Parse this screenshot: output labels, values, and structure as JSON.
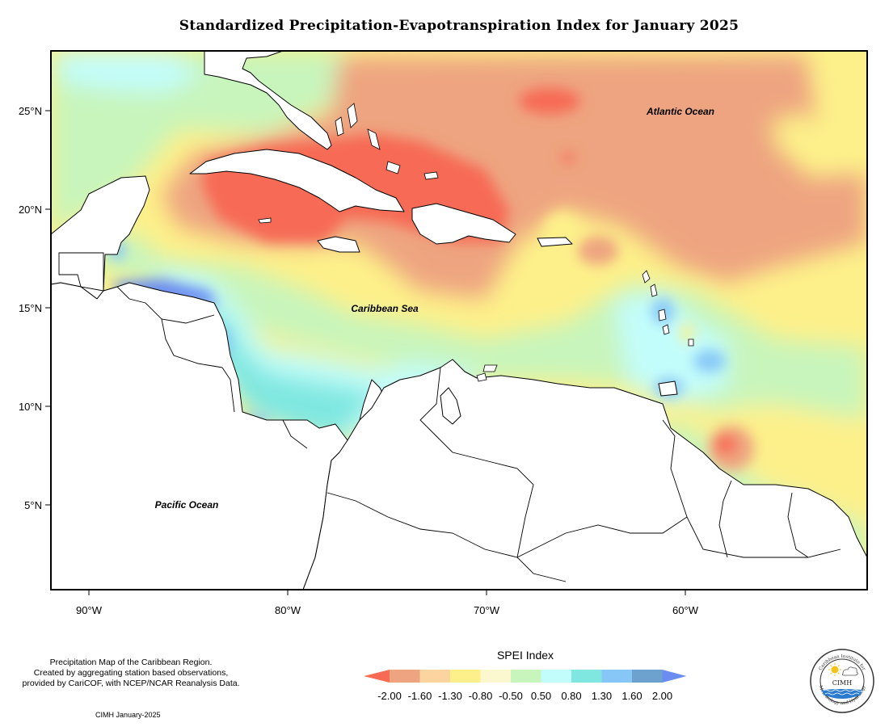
{
  "title": "Standardized Precipitation-Evapotranspiration Index for January 2025",
  "map": {
    "lat_labels": [
      "25°N",
      "20°N",
      "15°N",
      "10°N",
      "5°N"
    ],
    "lon_labels": [
      "90°W",
      "80°W",
      "70°W",
      "60°W"
    ],
    "ocean_labels": {
      "atlantic": "Atlantic Ocean",
      "caribbean": "Caribbean Sea",
      "pacific": "Pacific Ocean"
    }
  },
  "legend": {
    "title": "SPEI Index",
    "ticks": [
      "-2.00",
      "-1.60",
      "-1.30",
      "-0.80",
      "-0.50",
      "0.50",
      "0.80",
      "1.30",
      "1.60",
      "2.00"
    ],
    "colors": {
      "lt_m2": "#f76b54",
      "m2_m16": "#eea480",
      "m16_m13": "#fcd4a0",
      "m13_m08": "#fdf08a",
      "m08_m05": "#fbf8cf",
      "m05_05": "#c8f5bc",
      "p05_08": "#c3fdfb",
      "p08_13": "#7fe7e0",
      "p13_16": "#87c7f7",
      "p16_20": "#6ea2ce",
      "gt_20": "#6b8df2"
    }
  },
  "credits": {
    "line1": "Precipitation Map of the Caribbean Region.",
    "line2": "Created by aggregating station based observations,",
    "line3": "provided by CariCOF, with NCEP/NCAR Reanalysis Data.",
    "note": "CIMH January-2025"
  },
  "logo": {
    "name": "CIMH",
    "arc_top": "Caribbean Institute for",
    "arc_bottom": "Meteorology and Hydrology"
  }
}
